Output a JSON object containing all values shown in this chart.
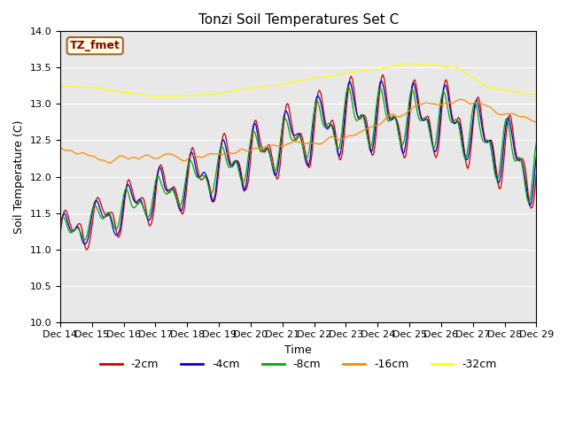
{
  "title": "Tonzi Soil Temperatures Set C",
  "xlabel": "Time",
  "ylabel": "Soil Temperature (C)",
  "annotation": "TZ_fmet",
  "ylim": [
    10.0,
    14.0
  ],
  "yticks": [
    10.0,
    10.5,
    11.0,
    11.5,
    12.0,
    12.5,
    13.0,
    13.5,
    14.0
  ],
  "xtick_labels": [
    "Dec 14",
    "Dec 15",
    "Dec 16",
    "Dec 17",
    "Dec 18",
    "Dec 19",
    "Dec 20",
    "Dec 21",
    "Dec 22",
    "Dec 23",
    "Dec 24",
    "Dec 25",
    "Dec 26",
    "Dec 27",
    "Dec 28",
    "Dec 29"
  ],
  "series": {
    "neg2cm": {
      "color": "#cc0000",
      "label": "-2cm"
    },
    "neg4cm": {
      "color": "#0000cc",
      "label": "-4cm"
    },
    "neg8cm": {
      "color": "#00aa00",
      "label": "-8cm"
    },
    "neg16cm": {
      "color": "#ff8800",
      "label": "-16cm"
    },
    "neg32cm": {
      "color": "#ffff00",
      "label": "-32cm"
    }
  },
  "bg_color": "#e8e8e8",
  "title_fontsize": 11,
  "axis_fontsize": 9,
  "tick_fontsize": 8
}
